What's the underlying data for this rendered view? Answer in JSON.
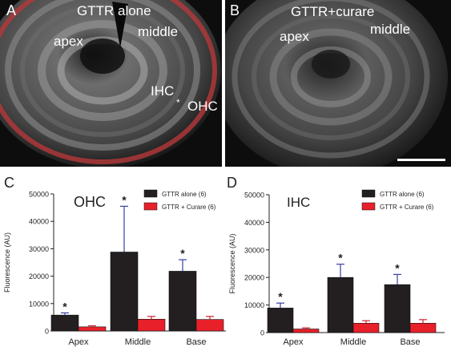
{
  "panel_a": {
    "letter": "A",
    "title": "GTTR alone",
    "labels": {
      "apex": "apex",
      "middle": "middle",
      "ihc": "IHC",
      "ohc": "OHC",
      "asterisk": "*"
    }
  },
  "panel_b": {
    "letter": "B",
    "title": "GTTR+curare",
    "labels": {
      "apex": "apex",
      "middle": "middle"
    }
  },
  "colors": {
    "black_bar": "#231f20",
    "red_bar": "#e8202a",
    "error_black": "#3a3fa0",
    "error_red": "#cc2530",
    "fluorescence_red": "#c8302c"
  },
  "chart_data": [
    {
      "panel": "C",
      "type": "bar",
      "title": "OHC",
      "xlabel": "",
      "ylabel": "Fluorescence (AU)",
      "ylim": [
        0,
        50000
      ],
      "yticks": [
        0,
        10000,
        20000,
        30000,
        40000,
        50000
      ],
      "categories": [
        "Apex",
        "Middle",
        "Base"
      ],
      "legend_position": "top-right",
      "series": [
        {
          "name": "GTTR alone (6)",
          "values": [
            5800,
            28800,
            21800
          ],
          "errors": [
            800,
            16700,
            4200
          ],
          "significant": [
            "*",
            "*",
            "*"
          ]
        },
        {
          "name": "GTTR + Curare (6)",
          "values": [
            1500,
            4300,
            4200
          ],
          "errors": [
            400,
            1000,
            1100
          ],
          "significant": [
            "",
            "",
            ""
          ]
        }
      ]
    },
    {
      "panel": "D",
      "type": "bar",
      "title": "IHC",
      "xlabel": "",
      "ylabel": "Fluorescence (AU)",
      "ylim": [
        0,
        50000
      ],
      "yticks": [
        0,
        10000,
        20000,
        30000,
        40000,
        50000
      ],
      "categories": [
        "Apex",
        "Middle",
        "Base"
      ],
      "legend_position": "top-right",
      "series": [
        {
          "name": "GTTR alone (6)",
          "values": [
            8900,
            20000,
            17400
          ],
          "errors": [
            1800,
            4800,
            3700
          ],
          "significant": [
            "*",
            "*",
            "*"
          ]
        },
        {
          "name": "GTTR + Curare (6)",
          "values": [
            1300,
            3400,
            3400
          ],
          "errors": [
            400,
            900,
            1300
          ],
          "significant": [
            "",
            "",
            ""
          ]
        }
      ]
    }
  ]
}
